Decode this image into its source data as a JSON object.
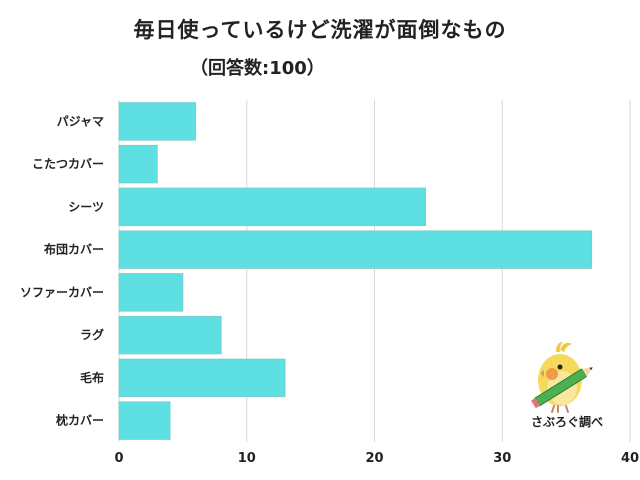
{
  "chart_data": {
    "type": "bar",
    "orientation": "horizontal",
    "title": "毎日使っているけど洗濯が面倒なもの",
    "subtitle": "（回答数:100）",
    "categories": [
      "パジャマ",
      "こたつカバー",
      "シーツ",
      "布団カバー",
      "ソファーカバー",
      "ラグ",
      "毛布",
      "枕カバー"
    ],
    "values": [
      6,
      3,
      24,
      37,
      5,
      8,
      13,
      4
    ],
    "xlim": [
      0,
      40
    ],
    "xticks": [
      "0",
      "10",
      "20",
      "30",
      "40"
    ],
    "xtick_values": [
      0,
      10,
      20,
      30,
      40
    ],
    "grid": true,
    "bar_color": "#5ee0e3",
    "bar_edge_color": "#7ec9cb"
  },
  "logo": {
    "text": "さぶろぐ調べ",
    "icon": "cockatiel-with-pencil-icon"
  }
}
